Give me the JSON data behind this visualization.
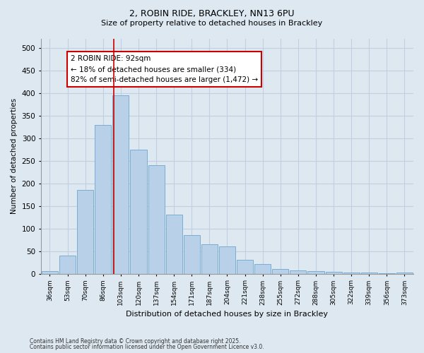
{
  "title1": "2, ROBIN RIDE, BRACKLEY, NN13 6PU",
  "title2": "Size of property relative to detached houses in Brackley",
  "xlabel": "Distribution of detached houses by size in Brackley",
  "ylabel": "Number of detached properties",
  "categories": [
    "36sqm",
    "53sqm",
    "70sqm",
    "86sqm",
    "103sqm",
    "120sqm",
    "137sqm",
    "154sqm",
    "171sqm",
    "187sqm",
    "204sqm",
    "221sqm",
    "238sqm",
    "255sqm",
    "272sqm",
    "288sqm",
    "305sqm",
    "322sqm",
    "339sqm",
    "356sqm",
    "373sqm"
  ],
  "values": [
    5,
    40,
    185,
    330,
    395,
    275,
    240,
    130,
    85,
    65,
    60,
    30,
    22,
    10,
    8,
    5,
    4,
    3,
    2,
    1,
    2
  ],
  "bar_color": "#b8d0e8",
  "bar_edge_color": "#7aadd4",
  "bar_linewidth": 0.7,
  "red_line_x": 3.62,
  "annotation_text": "2 ROBIN RIDE: 92sqm\n← 18% of detached houses are smaller (334)\n82% of semi-detached houses are larger (1,472) →",
  "annotation_box_color": "#ffffff",
  "annotation_box_edge": "#cc0000",
  "grid_color": "#c0d0e4",
  "bg_color": "#dde8f0",
  "plot_bg_color": "#dde8f0",
  "ylim": [
    0,
    520
  ],
  "yticks": [
    0,
    50,
    100,
    150,
    200,
    250,
    300,
    350,
    400,
    450,
    500
  ],
  "footer1": "Contains HM Land Registry data © Crown copyright and database right 2025.",
  "footer2": "Contains public sector information licensed under the Open Government Licence v3.0."
}
